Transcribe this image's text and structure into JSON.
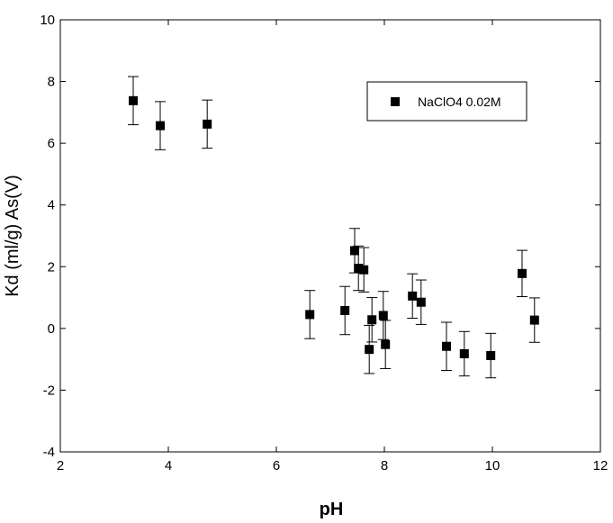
{
  "chart_data": {
    "type": "scatter",
    "xlabel": "pH",
    "ylabel": "Kd (ml/g) As(V)",
    "xlim": [
      2,
      12
    ],
    "ylim": [
      -4,
      10
    ],
    "xticks": [
      "2",
      "4",
      "6",
      "8",
      "10",
      "12"
    ],
    "yticks": [
      "-4",
      "-2",
      "0",
      "2",
      "4",
      "6",
      "8",
      "10"
    ],
    "grid": false,
    "legend_position": "top-right",
    "series": [
      {
        "name": "NaClO4 0.02M",
        "color": "#000000",
        "marker": "square",
        "points": [
          {
            "x": 3.35,
            "y": 7.38,
            "err": 0.78
          },
          {
            "x": 3.85,
            "y": 6.57,
            "err": 0.78
          },
          {
            "x": 4.72,
            "y": 6.62,
            "err": 0.78
          },
          {
            "x": 6.62,
            "y": 0.45,
            "err": 0.78
          },
          {
            "x": 7.27,
            "y": 0.58,
            "err": 0.78
          },
          {
            "x": 7.45,
            "y": 2.52,
            "err": 0.72
          },
          {
            "x": 7.52,
            "y": 1.95,
            "err": 0.72
          },
          {
            "x": 7.62,
            "y": 1.9,
            "err": 0.72
          },
          {
            "x": 7.72,
            "y": -0.68,
            "err": 0.78
          },
          {
            "x": 7.77,
            "y": 0.28,
            "err": 0.72
          },
          {
            "x": 7.98,
            "y": 0.42,
            "err": 0.78
          },
          {
            "x": 8.02,
            "y": -0.52,
            "err": 0.78
          },
          {
            "x": 8.52,
            "y": 1.05,
            "err": 0.72
          },
          {
            "x": 8.68,
            "y": 0.85,
            "err": 0.72
          },
          {
            "x": 9.15,
            "y": -0.58,
            "err": 0.78
          },
          {
            "x": 9.48,
            "y": -0.82,
            "err": 0.72
          },
          {
            "x": 9.97,
            "y": -0.88,
            "err": 0.72
          },
          {
            "x": 10.55,
            "y": 1.78,
            "err": 0.75
          },
          {
            "x": 10.78,
            "y": 0.27,
            "err": 0.72
          }
        ]
      }
    ]
  }
}
